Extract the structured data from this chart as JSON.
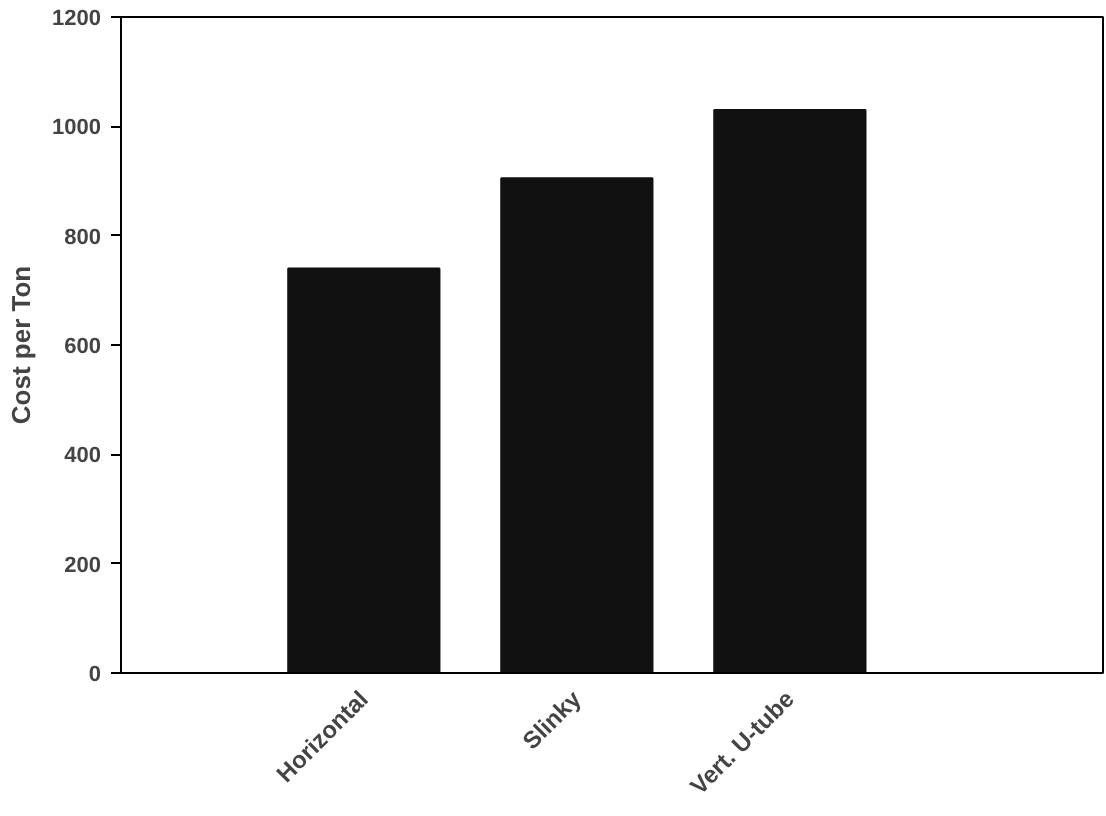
{
  "chart_data": {
    "type": "bar",
    "ylabel": "Cost per Ton",
    "categories": [
      "Horizontal",
      "Slinky",
      "Vert. U-tube"
    ],
    "values": [
      740,
      905,
      1030
    ],
    "color": "#111111",
    "ylim": [
      0,
      1200
    ],
    "yticks": [
      0,
      200,
      400,
      600,
      800,
      1000,
      1200
    ],
    "grid": false
  }
}
